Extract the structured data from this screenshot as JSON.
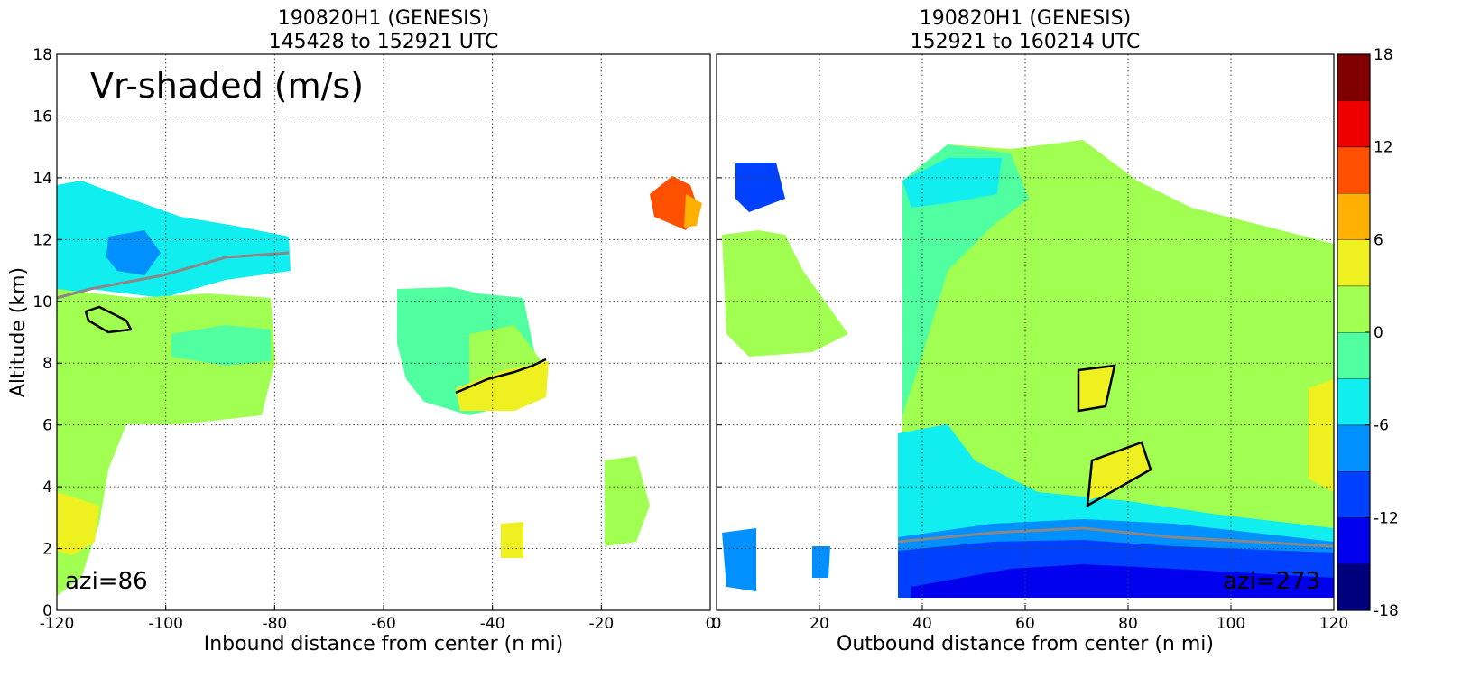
{
  "chart_data": [
    {
      "type": "contour",
      "title": [
        "190820H1 (GENESIS)",
        "145428 to 152921 UTC"
      ],
      "xlabel": "Inbound distance from center (n mi)",
      "ylabel": "Altitude (km)",
      "xlim": [
        -120,
        0
      ],
      "ylim": [
        0,
        18
      ],
      "xticks": [
        -120,
        -100,
        -80,
        -60,
        -40,
        -20,
        0
      ],
      "yticks": [
        0,
        2,
        4,
        6,
        8,
        10,
        12,
        14,
        16,
        18
      ],
      "grid": true,
      "annotations": [
        "Vr-shaded (m/s)",
        "azi=86"
      ]
    },
    {
      "type": "contour",
      "title": [
        "190820H1 (GENESIS)",
        "152921 to 160214 UTC"
      ],
      "xlabel": "Outbound distance from center (n mi)",
      "xlim": [
        0,
        120
      ],
      "ylim": [
        0,
        18
      ],
      "xticks": [
        0,
        20,
        40,
        60,
        80,
        100,
        120
      ],
      "yticks": [
        0,
        2,
        4,
        6,
        8,
        10,
        12,
        14,
        16,
        18
      ],
      "grid": true,
      "annotations": [
        "azi=273"
      ]
    },
    {
      "type": "colorbar",
      "levels": [
        -18,
        -15,
        -12,
        -9,
        -6,
        -3,
        0,
        3,
        6,
        9,
        12,
        15,
        18
      ],
      "colors": [
        "#00007f",
        "#0000ee",
        "#0040ff",
        "#0090ff",
        "#10eef0",
        "#50ffa0",
        "#a0ff50",
        "#eef020",
        "#ffb000",
        "#ff5000",
        "#ee0000",
        "#800000"
      ],
      "ticks": [
        -18,
        -12,
        -6,
        0,
        6,
        12,
        18
      ]
    }
  ]
}
